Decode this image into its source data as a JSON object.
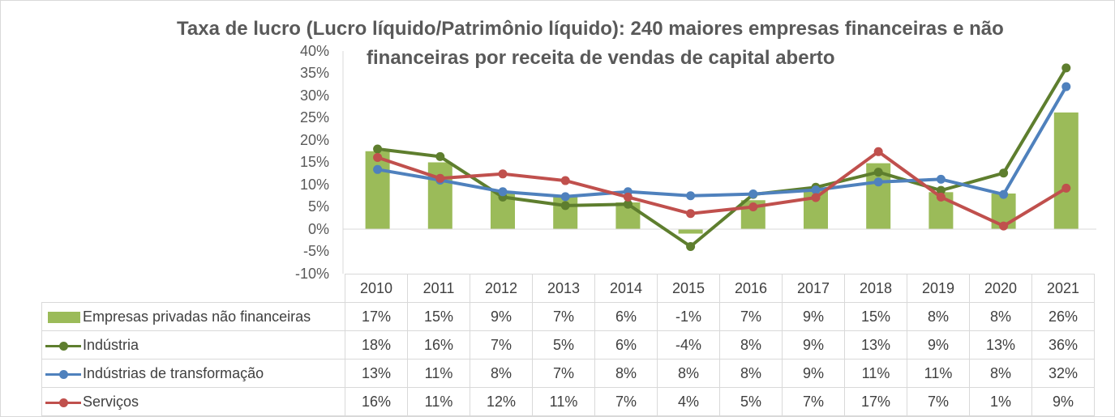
{
  "chart_data": {
    "type": "bar",
    "title_lines": [
      "Taxa de lucro (Lucro líquido/Patrimônio líquido): 240 maiores empresas financeiras e não",
      "financeiras por receita de vendas de capital aberto"
    ],
    "categories": [
      "2010",
      "2011",
      "2012",
      "2013",
      "2014",
      "2015",
      "2016",
      "2017",
      "2018",
      "2019",
      "2020",
      "2021"
    ],
    "ylim": [
      -0.1,
      0.4
    ],
    "yticks": [
      "40%",
      "35%",
      "30%",
      "25%",
      "20%",
      "15%",
      "10%",
      "5%",
      "0%",
      "-5%",
      "-10%"
    ],
    "grid": false,
    "legend_placement": "data-table",
    "series": [
      {
        "name": "Empresas privadas não financeiras",
        "type": "bar",
        "color": "#9bbb59",
        "values": [
          0.175,
          0.15,
          0.085,
          0.075,
          0.06,
          -0.01,
          0.065,
          0.09,
          0.148,
          0.083,
          0.08,
          0.262
        ],
        "labels": [
          "17%",
          "15%",
          "9%",
          "7%",
          "6%",
          "-1%",
          "7%",
          "9%",
          "15%",
          "8%",
          "8%",
          "26%"
        ]
      },
      {
        "name": "Indústria",
        "type": "line",
        "color": "#5e7e2e",
        "values": [
          0.18,
          0.163,
          0.072,
          0.053,
          0.056,
          -0.039,
          0.078,
          0.094,
          0.128,
          0.087,
          0.126,
          0.362
        ],
        "labels": [
          "18%",
          "16%",
          "7%",
          "5%",
          "6%",
          "-4%",
          "8%",
          "9%",
          "13%",
          "9%",
          "13%",
          "36%"
        ]
      },
      {
        "name": "Indústrias de transformação",
        "type": "line",
        "color": "#4f81bd",
        "values": [
          0.134,
          0.11,
          0.084,
          0.073,
          0.084,
          0.075,
          0.079,
          0.088,
          0.106,
          0.112,
          0.078,
          0.32
        ],
        "labels": [
          "13%",
          "11%",
          "8%",
          "7%",
          "8%",
          "8%",
          "8%",
          "9%",
          "11%",
          "11%",
          "8%",
          "32%"
        ]
      },
      {
        "name": "Serviços",
        "type": "line",
        "color": "#c0504d",
        "values": [
          0.161,
          0.114,
          0.124,
          0.109,
          0.072,
          0.035,
          0.05,
          0.071,
          0.174,
          0.072,
          0.007,
          0.092
        ],
        "labels": [
          "16%",
          "11%",
          "12%",
          "11%",
          "7%",
          "4%",
          "5%",
          "7%",
          "17%",
          "7%",
          "1%",
          "9%"
        ]
      }
    ]
  }
}
